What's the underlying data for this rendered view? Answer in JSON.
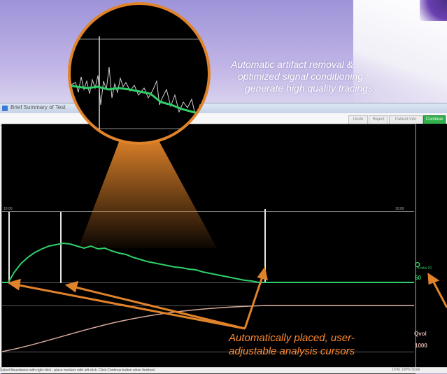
{
  "window": {
    "title": "Brief Summary of Test",
    "toolbar": {
      "buttons": [
        "Undo",
        "Reject",
        "Patient Info",
        "Continue"
      ]
    },
    "status_text": "Select Boundaries with right click - place markers with left click. Click Continue button when finished.",
    "status_right": "10:41     100% Scale"
  },
  "plot": {
    "scale_left": "10:00",
    "scale_right": "10:00"
  },
  "side_panel": {
    "flow": {
      "label": "Q",
      "unit": "ml/s  10",
      "value": "50",
      "color": "#2fd06a"
    },
    "volume": {
      "label": "Qvol",
      "value": "1000",
      "color": "#d8b0a8"
    }
  },
  "captions": {
    "artifact": [
      "Automatic artifact removal &",
      "optimized signal conditioning",
      "generate high quality tracings"
    ],
    "cursors": [
      "Automatically placed, user-",
      "adjustable analysis cursors"
    ]
  },
  "colors": {
    "flow_trace": "#2fd06a",
    "volume_trace": "#d8a99c",
    "callout": "#e0832a",
    "cursor": "#e6e6e6"
  },
  "icons": {
    "app": "app-icon",
    "magnifier": "magnifier-callout"
  }
}
